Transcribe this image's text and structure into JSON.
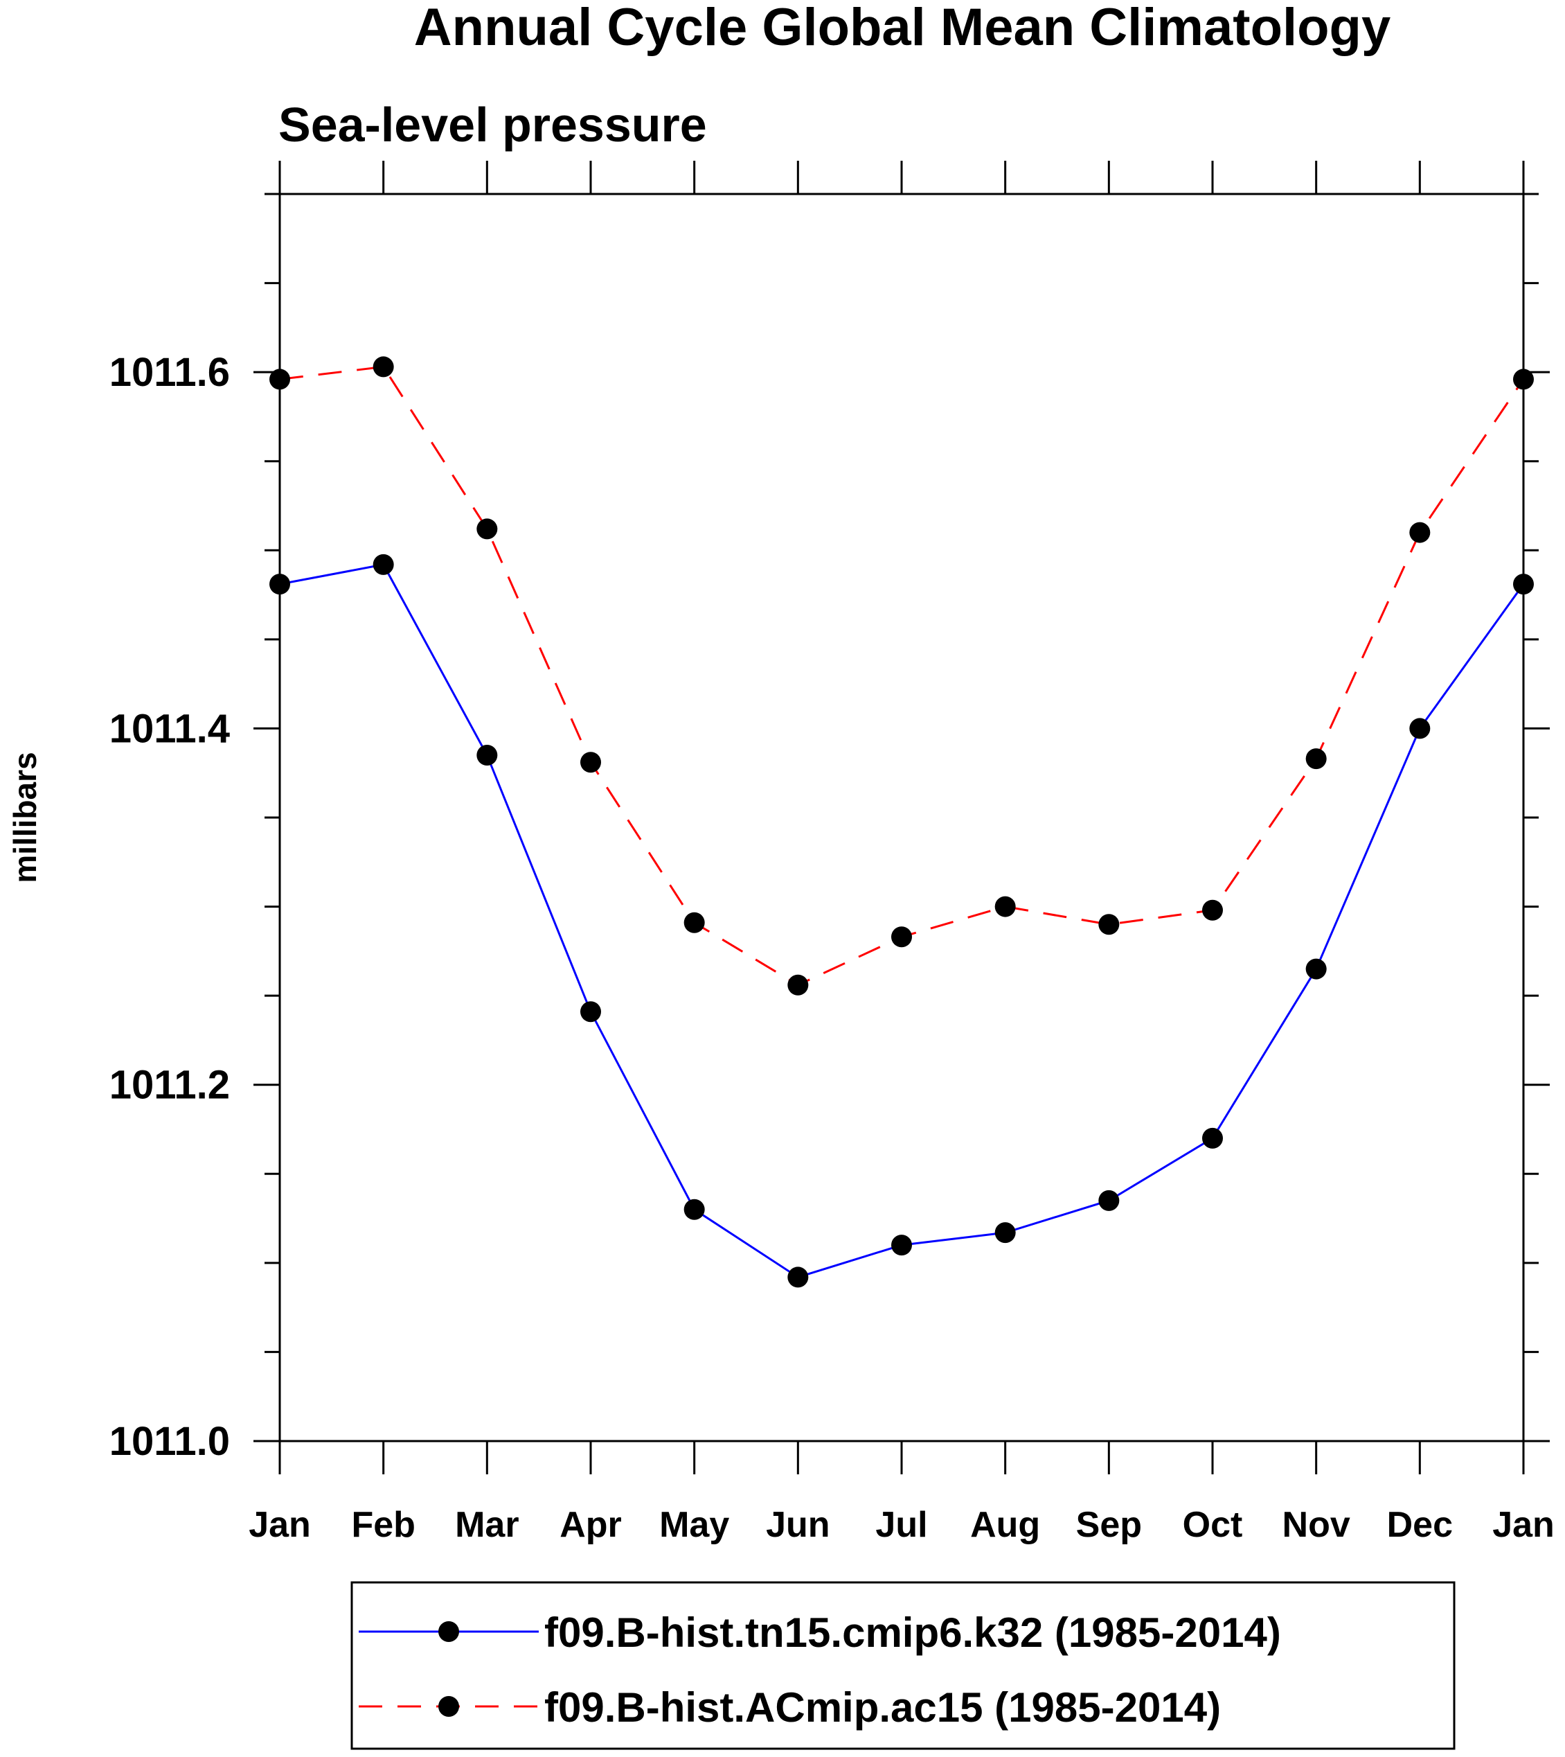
{
  "chart_data": {
    "type": "line",
    "title": "Annual Cycle Global Mean Climatology",
    "subtitle": "Sea-level pressure",
    "xlabel": "",
    "ylabel": "millibars",
    "categories": [
      "Jan",
      "Feb",
      "Mar",
      "Apr",
      "May",
      "Jun",
      "Jul",
      "Aug",
      "Sep",
      "Oct",
      "Nov",
      "Dec",
      "Jan"
    ],
    "ylim": [
      1011.0,
      1011.7
    ],
    "yticks": [
      1011.0,
      1011.2,
      1011.4,
      1011.6
    ],
    "ytick_labels": [
      "1011.0",
      "1011.2",
      "1011.4",
      "1011.6"
    ],
    "series": [
      {
        "name": "f09.B-hist.tn15.cmip6.k32 (1985-2014)",
        "color": "#0000ff",
        "dash": "solid",
        "values": [
          1011.481,
          1011.492,
          1011.385,
          1011.241,
          1011.13,
          1011.092,
          1011.11,
          1011.117,
          1011.135,
          1011.17,
          1011.265,
          1011.4,
          1011.481
        ]
      },
      {
        "name": "f09.B-hist.ACmip.ac15 (1985-2014)",
        "color": "#ff0000",
        "dash": "dashed",
        "values": [
          1011.596,
          1011.603,
          1011.512,
          1011.381,
          1011.291,
          1011.256,
          1011.283,
          1011.3,
          1011.29,
          1011.298,
          1011.383,
          1011.51,
          1011.596
        ]
      }
    ],
    "legend_position": "bottom"
  }
}
